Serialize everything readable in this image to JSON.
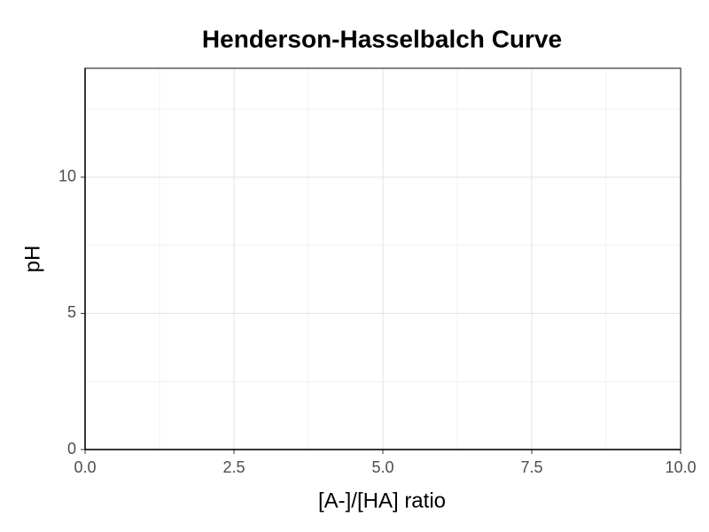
{
  "chart_data": {
    "type": "line",
    "title": "Henderson-Hasselbalch Curve",
    "x_label": "[A-]/[HA] ratio",
    "y_label": "pH",
    "xlim": [
      0,
      10
    ],
    "ylim": [
      0,
      14
    ],
    "xticks": [
      {
        "value": 0,
        "label": "0.0"
      },
      2.5,
      {
        "value": 5,
        "label": "5.0"
      },
      7.5,
      {
        "value": 10,
        "label": "10.0"
      }
    ],
    "yticks": [
      0,
      5,
      10
    ],
    "grid": true
  }
}
